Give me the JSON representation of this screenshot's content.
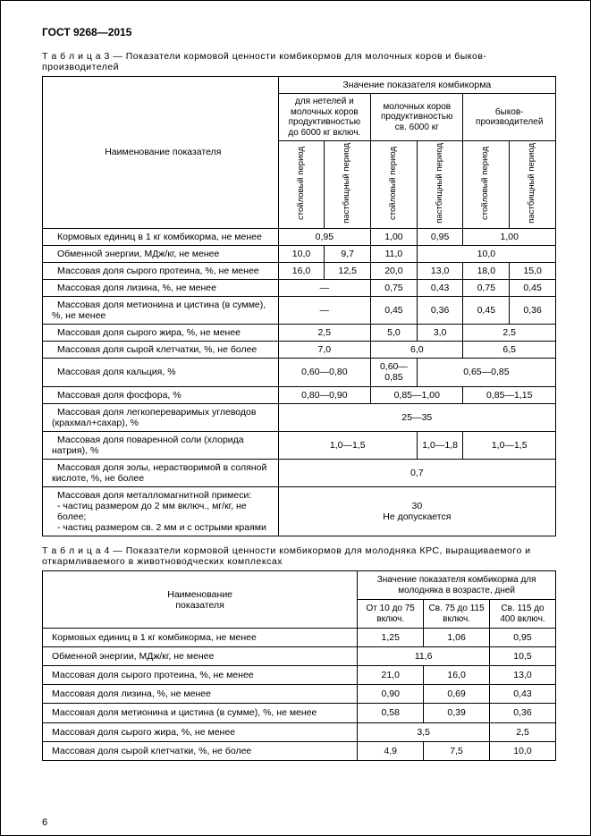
{
  "doc": {
    "standard": "ГОСТ 9268—2015",
    "page_number": "6"
  },
  "t3": {
    "caption_prefix": "Т а б л и ц а  3 — ",
    "caption": "Показатели кормовой ценности комбикормов для молочных коров и быков-производителей",
    "h_name": "Наименование показателя",
    "h_value": "Значение показателя комбикорма",
    "h_col1": "для нетелей и молочных коров продуктивностью до 6000 кг включ.",
    "h_col2": "молочных коров продуктивностью св. 6000 кг",
    "h_col3": "быков-производителей",
    "h_p1": "стойловый период",
    "h_p2": "пастбищный период",
    "rows": [
      {
        "l": "Кормовых единиц в 1 кг комбикорма, не менее",
        "v": [
          {
            "s": 2,
            "t": "0,95"
          },
          {
            "s": 1,
            "t": "1,00"
          },
          {
            "s": 1,
            "t": "0,95"
          },
          {
            "s": 2,
            "t": "1,00"
          }
        ]
      },
      {
        "l": "Обменной энергии, МДж/кг, не менее",
        "v": [
          {
            "s": 1,
            "t": "10,0"
          },
          {
            "s": 1,
            "t": "9,7"
          },
          {
            "s": 1,
            "t": "11,0"
          },
          {
            "s": 3,
            "t": "10,0"
          }
        ]
      },
      {
        "l": "Массовая доля сырого протеина, %, не менее",
        "v": [
          {
            "s": 1,
            "t": "16,0"
          },
          {
            "s": 1,
            "t": "12,5"
          },
          {
            "s": 1,
            "t": "20,0"
          },
          {
            "s": 1,
            "t": "13,0"
          },
          {
            "s": 1,
            "t": "18,0"
          },
          {
            "s": 1,
            "t": "15,0"
          }
        ]
      },
      {
        "l": "Массовая доля лизина, %, не менее",
        "v": [
          {
            "s": 2,
            "t": "—"
          },
          {
            "s": 1,
            "t": "0,75"
          },
          {
            "s": 1,
            "t": "0,43"
          },
          {
            "s": 1,
            "t": "0,75"
          },
          {
            "s": 1,
            "t": "0,45"
          }
        ]
      },
      {
        "l": "Массовая доля метионина и цистина (в сумме), %, не менее",
        "v": [
          {
            "s": 2,
            "t": "—"
          },
          {
            "s": 1,
            "t": "0,45"
          },
          {
            "s": 1,
            "t": "0,36"
          },
          {
            "s": 1,
            "t": "0,45"
          },
          {
            "s": 1,
            "t": "0,36"
          }
        ]
      },
      {
        "l": "Массовая доля сырого жира, %, не менее",
        "v": [
          {
            "s": 2,
            "t": "2,5"
          },
          {
            "s": 1,
            "t": "5,0"
          },
          {
            "s": 1,
            "t": "3,0"
          },
          {
            "s": 2,
            "t": "2,5"
          }
        ]
      },
      {
        "l": "Массовая доля сырой клетчатки, %, не более",
        "v": [
          {
            "s": 2,
            "t": "7,0"
          },
          {
            "s": 2,
            "t": "6,0"
          },
          {
            "s": 2,
            "t": "6,5"
          }
        ]
      },
      {
        "l": "Массовая доля кальция, %",
        "v": [
          {
            "s": 2,
            "t": "0,60—0,80"
          },
          {
            "s": 1,
            "t": "0,60—0,85"
          },
          {
            "s": 3,
            "t": "0,65—0,85"
          }
        ]
      },
      {
        "l": "Массовая доля фосфора, %",
        "v": [
          {
            "s": 2,
            "t": "0,80—0,90"
          },
          {
            "s": 2,
            "t": "0,85—1,00"
          },
          {
            "s": 2,
            "t": "0,85—1,15"
          }
        ]
      },
      {
        "l": "Массовая доля легкопереваримых углеводов (крахмал+сахар), %",
        "v": [
          {
            "s": 6,
            "t": "25—35"
          }
        ]
      },
      {
        "l": "Массовая доля поваренной соли (хлорида натрия), %",
        "v": [
          {
            "s": 3,
            "t": "1,0—1,5"
          },
          {
            "s": 1,
            "t": "1,0—1,8"
          },
          {
            "s": 2,
            "t": "1,0—1,5"
          }
        ]
      },
      {
        "l": "Массовая доля золы, нерастворимой в соляной кислоте, %, не более",
        "v": [
          {
            "s": 6,
            "t": "0,7"
          }
        ]
      }
    ],
    "last_row": {
      "l1": "Массовая доля металломагнитной примеси:",
      "l2": "- частиц размером до 2 мм включ., мг/кг, не более;",
      "l3": "- частиц размером св. 2 мм и с острыми краями",
      "v1": "30",
      "v2": "Не допускается"
    }
  },
  "t4": {
    "caption_prefix": "Т а б л и ц а  4 — ",
    "caption": "Показатели кормовой ценности комбикормов для молодняка КРС, выращиваемого и откармливаемого в животноводческих комплексах",
    "h_name1": "Наименование",
    "h_name2": "показателя",
    "h_value": "Значение показателя комбикорма для молодняка в возрасте, дней",
    "h_c1": "От 10 до 75 включ.",
    "h_c2": "Св. 75 до 115 включ.",
    "h_c3": "Св. 115 до 400 включ.",
    "rows": [
      {
        "l": "Кормовых единиц в 1 кг комбикорма, не менее",
        "v": [
          {
            "s": 1,
            "t": "1,25"
          },
          {
            "s": 1,
            "t": "1,06"
          },
          {
            "s": 1,
            "t": "0,95"
          }
        ]
      },
      {
        "l": "Обменной энергии, МДж/кг, не менее",
        "v": [
          {
            "s": 2,
            "t": "11,6"
          },
          {
            "s": 1,
            "t": "10,5"
          }
        ]
      },
      {
        "l": "Массовая доля сырого протеина, %, не менее",
        "v": [
          {
            "s": 1,
            "t": "21,0"
          },
          {
            "s": 1,
            "t": "16,0"
          },
          {
            "s": 1,
            "t": "13,0"
          }
        ]
      },
      {
        "l": "Массовая доля лизина, %, не менее",
        "v": [
          {
            "s": 1,
            "t": "0,90"
          },
          {
            "s": 1,
            "t": "0,69"
          },
          {
            "s": 1,
            "t": "0,43"
          }
        ]
      },
      {
        "l": "Массовая доля метионина и цистина (в сумме), %, не менее",
        "v": [
          {
            "s": 1,
            "t": "0,58"
          },
          {
            "s": 1,
            "t": "0,39"
          },
          {
            "s": 1,
            "t": "0,36"
          }
        ]
      },
      {
        "l": "Массовая доля сырого жира, %, не менее",
        "v": [
          {
            "s": 2,
            "t": "3,5"
          },
          {
            "s": 1,
            "t": "2,5"
          }
        ]
      },
      {
        "l": "Массовая доля сырой клетчатки, %, не более",
        "v": [
          {
            "s": 1,
            "t": "4,9"
          },
          {
            "s": 1,
            "t": "7,5"
          },
          {
            "s": 1,
            "t": "10,0"
          }
        ]
      }
    ]
  }
}
